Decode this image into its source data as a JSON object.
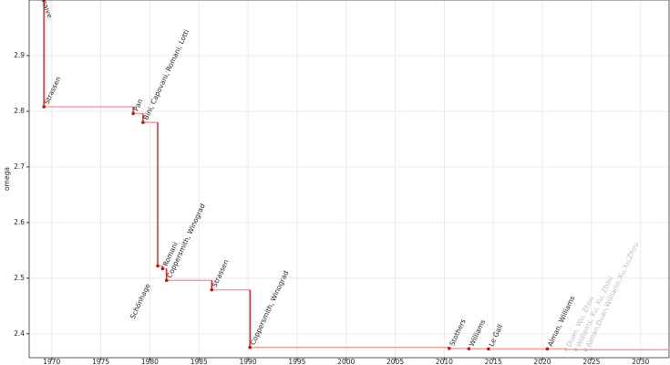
{
  "chart_data": {
    "type": "step",
    "y_label": "omega",
    "xlim": [
      1967.7,
      2033
    ],
    "ylim": [
      2.357,
      3.0
    ],
    "xticks": [
      1970,
      1975,
      1980,
      1985,
      1990,
      1995,
      2000,
      2005,
      2010,
      2015,
      2020,
      2025,
      2030
    ],
    "yticks": [
      2.4,
      2.5,
      2.6,
      2.7,
      2.8,
      2.9
    ],
    "grid": true,
    "line_color": "#cc1111",
    "step_color": "#f4a0a0",
    "points": [
      {
        "label": "naive",
        "x": 1969.2,
        "y": 3.0,
        "color": "#cc1111"
      },
      {
        "label": "Strassen",
        "x": 1969.2,
        "y": 2.808,
        "color": "#cc1111"
      },
      {
        "label": "Pan",
        "x": 1978.3,
        "y": 2.796,
        "color": "#cc1111"
      },
      {
        "label": "Bini, Capovani, Romani, Lotti",
        "x": 1979.3,
        "y": 2.78,
        "color": "#cc1111"
      },
      {
        "label": "Schönhage",
        "x": 1980.8,
        "y": 2.522,
        "color": "#cc1111"
      },
      {
        "label": "Romani",
        "x": 1981.3,
        "y": 2.517,
        "color": "#cc1111"
      },
      {
        "label": "Coppersmith, Winograd",
        "x": 1981.7,
        "y": 2.496,
        "color": "#cc1111"
      },
      {
        "label": "Strassen",
        "x": 1986.3,
        "y": 2.479,
        "color": "#cc1111"
      },
      {
        "label": "Coppersmith, Winograd",
        "x": 1990.2,
        "y": 2.3755,
        "color": "#cc1111"
      },
      {
        "label": "Stothers",
        "x": 2010.5,
        "y": 2.3737,
        "color": "#cc1111"
      },
      {
        "label": "Williams",
        "x": 2012.5,
        "y": 2.3729,
        "color": "#cc1111"
      },
      {
        "label": "Le Gall",
        "x": 2014.5,
        "y": 2.3728,
        "color": "#cc1111"
      },
      {
        "label": "Alman, Williams",
        "x": 2020.5,
        "y": 2.3728,
        "color": "#cc1111"
      },
      {
        "label": "Duan, Wu, Zhou",
        "x": 2022.4,
        "y": 2.3719,
        "color": "#bbbbbb"
      },
      {
        "label": "Williams, Xu, Xu, Zhou",
        "x": 2023.4,
        "y": 2.3716,
        "color": "#bbbbbb"
      },
      {
        "label": "Alman,Duan,Williams,Xu,Xu,Zhou",
        "x": 2024.4,
        "y": 2.3713,
        "color": "#bbbbbb"
      }
    ]
  }
}
